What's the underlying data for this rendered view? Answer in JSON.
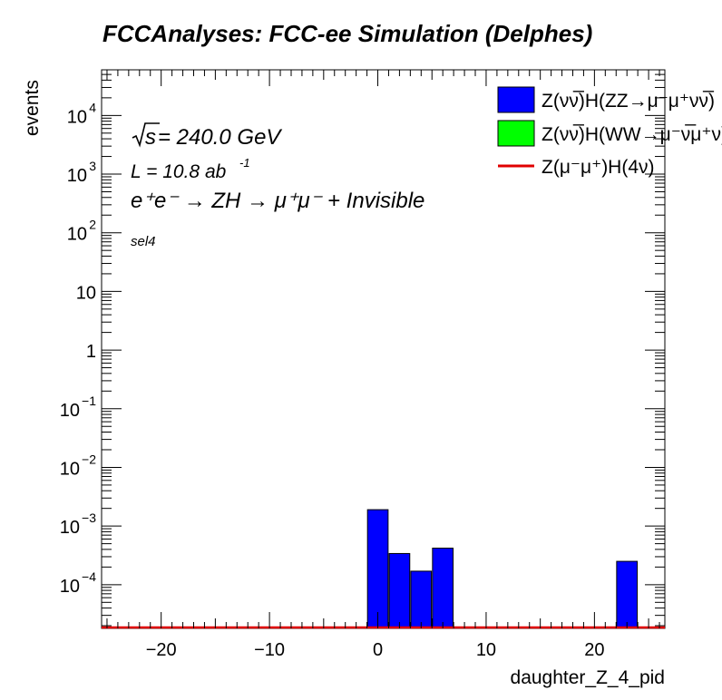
{
  "chart_data": {
    "type": "bar",
    "title": "FCCAnalyses: FCC-ee Simulation (Delphes)",
    "xlabel": "daughter_Z_4_pid",
    "ylabel": "events",
    "xlim": [
      -25.5,
      26.5
    ],
    "ylim": [
      1.8e-05,
      60000
    ],
    "yscale": "log",
    "grid": false,
    "legend_position": "top-right",
    "x_tick_labels": [
      "−20",
      "−10",
      "0",
      "10",
      "20"
    ],
    "x_ticks": [
      -20,
      -10,
      0,
      10,
      20
    ],
    "y_ticks": [
      0.0001,
      0.001,
      0.01,
      0.1,
      1,
      10,
      100,
      1000,
      10000
    ],
    "y_tick_labels": [
      {
        "base": "10",
        "exp": "−4"
      },
      {
        "base": "10",
        "exp": "−3"
      },
      {
        "base": "10",
        "exp": "−2"
      },
      {
        "base": "10",
        "exp": "−1"
      },
      {
        "base": "1",
        "exp": ""
      },
      {
        "base": "10",
        "exp": ""
      },
      {
        "base": "10",
        "exp": "2"
      },
      {
        "base": "10",
        "exp": "3"
      },
      {
        "base": "10",
        "exp": "4"
      }
    ],
    "annotations": {
      "sqrt_s": "s",
      "energy": " = 240.0 GeV",
      "lumi": "L = 10.8 ab",
      "lumi_exp": "-1",
      "process": "e⁺e⁻ → ZH → μ⁺μ⁻ + Invisible",
      "selection": "sel4"
    },
    "series": [
      {
        "name": "Z(νν̅)H(ZZ→μ⁻μ⁺νν̅)",
        "color": "#0000ff",
        "style": "bar",
        "x": [
          0,
          2,
          4,
          6,
          23
        ],
        "values": [
          0.0019,
          0.00034,
          0.00017,
          0.00042,
          0.00025
        ]
      },
      {
        "name": "Z(νν̅)H(WW→μ⁻ν̅μ⁺ν)",
        "color": "#00ff00",
        "style": "bar",
        "x": [],
        "values": []
      },
      {
        "name": "Z(μ⁻μ⁺)H(4ν)",
        "color": "#e00000",
        "style": "line",
        "x": [],
        "values": []
      }
    ]
  }
}
